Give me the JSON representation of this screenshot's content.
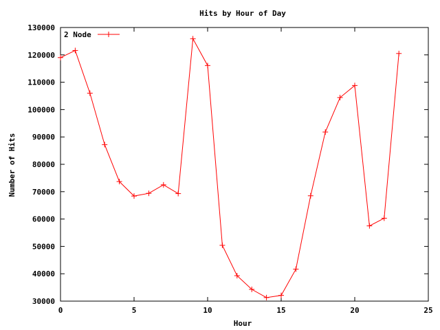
{
  "chart_data": {
    "type": "line",
    "title": "Hits by Hour of Day",
    "xlabel": "Hour",
    "ylabel": "Number of Hits",
    "xlim": [
      0,
      25
    ],
    "ylim": [
      30000,
      130000
    ],
    "xticks": [
      0,
      5,
      10,
      15,
      20,
      25
    ],
    "yticks": [
      30000,
      40000,
      50000,
      60000,
      70000,
      80000,
      90000,
      100000,
      110000,
      120000,
      130000
    ],
    "grid": false,
    "legend_position": "top-left",
    "series": [
      {
        "name": "2 Node",
        "color": "#ff0000",
        "marker": "plus",
        "x": [
          0,
          1,
          2,
          3,
          4,
          5,
          6,
          7,
          8,
          9,
          10,
          11,
          12,
          13,
          14,
          15,
          16,
          17,
          18,
          19,
          20,
          21,
          22,
          23
        ],
        "y": [
          119000,
          121600,
          106000,
          87200,
          73700,
          68400,
          69400,
          72500,
          69300,
          125900,
          116100,
          50400,
          39300,
          34300,
          31300,
          32100,
          41700,
          68500,
          91800,
          104400,
          108800,
          57500,
          60300,
          120500
        ]
      }
    ]
  }
}
